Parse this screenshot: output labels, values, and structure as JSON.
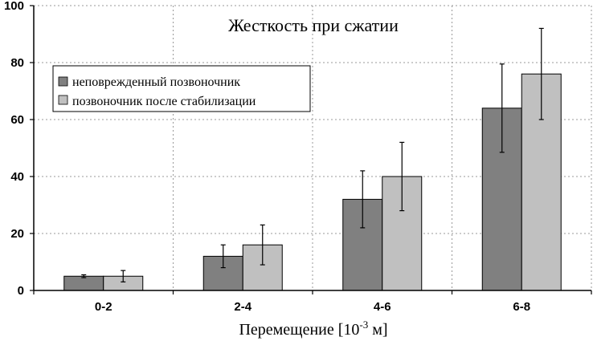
{
  "chart_data": {
    "type": "bar",
    "title": "Жесткость при сжатии",
    "xlabel": "Перемещение [10",
    "xlabel_exp": "-3",
    "xlabel_suffix": " м]",
    "ylabel": "",
    "categories": [
      "0-2",
      "2-4",
      "4-6",
      "6-8"
    ],
    "ylim": [
      0,
      100
    ],
    "yticks": [
      0,
      20,
      40,
      60,
      80,
      100
    ],
    "grid": true,
    "legend_position": "top-left",
    "series": [
      {
        "name": "неповрежденный позвоночник",
        "color": "#808080",
        "values": [
          5,
          12,
          32,
          64
        ],
        "err_low": [
          4.5,
          8,
          22,
          48.5
        ],
        "err_high": [
          5.5,
          16,
          42,
          79.5
        ]
      },
      {
        "name": "позвоночник после стабилизации",
        "color": "#c0c0c0",
        "values": [
          5,
          16,
          40,
          76
        ],
        "err_low": [
          3,
          9,
          28,
          60
        ],
        "err_high": [
          7,
          23,
          52,
          92
        ]
      }
    ]
  }
}
